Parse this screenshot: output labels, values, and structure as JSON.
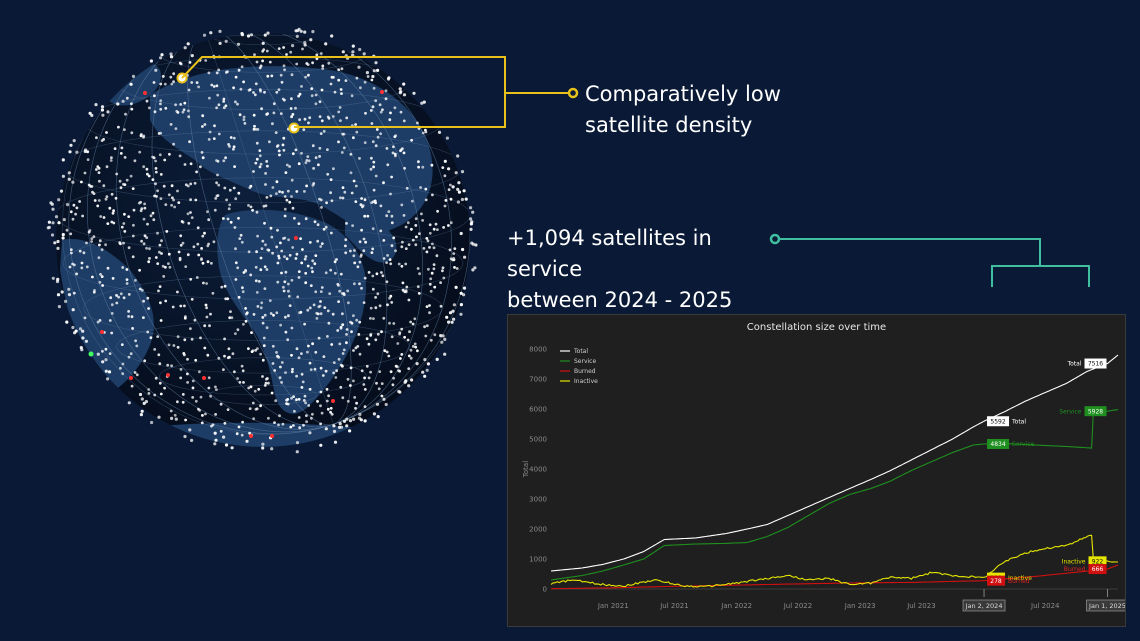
{
  "callouts": {
    "density_line1": "Comparatively low",
    "density_line2": "satellite density",
    "service_line1": "+1,094 satellites in service",
    "service_line2": "between 2024 - 2025"
  },
  "colors": {
    "background": "#0a1a36",
    "density_callout": "#e8c21a",
    "service_callout": "#3fbf9f",
    "total": "#ffffff",
    "service": "#1f8f1f",
    "burned": "#d01010",
    "inactive": "#e6e600"
  },
  "chart_data": {
    "type": "line",
    "title": "Constellation size over time",
    "ylabel": "Total",
    "xlabel": "",
    "ylim": [
      0,
      8000
    ],
    "yticks": [
      0,
      1000,
      2000,
      3000,
      4000,
      5000,
      6000,
      7000,
      8000
    ],
    "ytick_labels": [
      "0",
      "1000",
      "2000",
      "3000",
      "4000",
      "5000",
      "6000",
      "7000",
      "8000"
    ],
    "xlim": [
      "2020-07-01",
      "2025-02-01"
    ],
    "xticks": [
      {
        "date": "2021-01-01",
        "label": "Jan 2021"
      },
      {
        "date": "2021-07-01",
        "label": "Jul 2021"
      },
      {
        "date": "2022-01-01",
        "label": "Jan 2022"
      },
      {
        "date": "2022-07-01",
        "label": "Jul 2022"
      },
      {
        "date": "2023-01-01",
        "label": "Jan 2023"
      },
      {
        "date": "2023-07-01",
        "label": "Jul 2023"
      },
      {
        "date": "2024-07-01",
        "label": "Jul 2024"
      }
    ],
    "highlight_dates": [
      {
        "date": "2024-01-02",
        "label": "Jan 2, 2024"
      },
      {
        "date": "2025-01-01",
        "label": "Jan 1, 2025"
      }
    ],
    "legend_position": "top-left",
    "grid": false,
    "series": [
      {
        "name": "Total",
        "color": "#ffffff",
        "points": [
          [
            "2020-07-01",
            600
          ],
          [
            "2020-10-01",
            700
          ],
          [
            "2020-12-01",
            820
          ],
          [
            "2021-02-01",
            1000
          ],
          [
            "2021-04-01",
            1250
          ],
          [
            "2021-06-01",
            1650
          ],
          [
            "2021-09-01",
            1700
          ],
          [
            "2021-12-01",
            1850
          ],
          [
            "2022-02-01",
            2000
          ],
          [
            "2022-04-01",
            2150
          ],
          [
            "2022-06-01",
            2450
          ],
          [
            "2022-08-01",
            2750
          ],
          [
            "2022-10-01",
            3050
          ],
          [
            "2022-12-01",
            3350
          ],
          [
            "2023-02-01",
            3650
          ],
          [
            "2023-04-01",
            3950
          ],
          [
            "2023-06-01",
            4300
          ],
          [
            "2023-08-01",
            4650
          ],
          [
            "2023-10-01",
            5000
          ],
          [
            "2023-12-01",
            5400
          ],
          [
            "2024-01-02",
            5592
          ],
          [
            "2024-03-01",
            5900
          ],
          [
            "2024-05-01",
            6250
          ],
          [
            "2024-07-01",
            6550
          ],
          [
            "2024-09-01",
            6850
          ],
          [
            "2024-11-01",
            7250
          ],
          [
            "2025-01-01",
            7516
          ],
          [
            "2025-02-01",
            7800
          ]
        ]
      },
      {
        "name": "Service",
        "color": "#1f8f1f",
        "points": [
          [
            "2020-07-01",
            300
          ],
          [
            "2020-10-01",
            450
          ],
          [
            "2020-12-01",
            600
          ],
          [
            "2021-02-01",
            800
          ],
          [
            "2021-04-01",
            1000
          ],
          [
            "2021-06-01",
            1450
          ],
          [
            "2021-09-01",
            1500
          ],
          [
            "2021-12-01",
            1520
          ],
          [
            "2022-02-01",
            1550
          ],
          [
            "2022-04-01",
            1750
          ],
          [
            "2022-06-01",
            2050
          ],
          [
            "2022-08-01",
            2450
          ],
          [
            "2022-10-01",
            2850
          ],
          [
            "2022-12-01",
            3150
          ],
          [
            "2023-02-01",
            3350
          ],
          [
            "2023-04-01",
            3600
          ],
          [
            "2023-06-01",
            3950
          ],
          [
            "2023-08-01",
            4250
          ],
          [
            "2023-10-01",
            4550
          ],
          [
            "2023-12-01",
            4800
          ],
          [
            "2024-01-02",
            4834
          ],
          [
            "2024-03-01",
            4850
          ],
          [
            "2024-06-01",
            4800
          ],
          [
            "2024-09-01",
            4750
          ],
          [
            "2024-11-15",
            4700
          ],
          [
            "2024-11-20",
            5900
          ],
          [
            "2025-01-01",
            5928
          ],
          [
            "2025-02-01",
            5980
          ]
        ]
      },
      {
        "name": "Burned",
        "color": "#d01010",
        "points": [
          [
            "2020-07-01",
            10
          ],
          [
            "2021-01-01",
            40
          ],
          [
            "2021-07-01",
            90
          ],
          [
            "2022-01-01",
            130
          ],
          [
            "2022-07-01",
            170
          ],
          [
            "2022-12-01",
            200
          ],
          [
            "2023-06-01",
            220
          ],
          [
            "2024-01-02",
            278
          ],
          [
            "2024-06-01",
            420
          ],
          [
            "2024-10-01",
            560
          ],
          [
            "2025-01-01",
            666
          ],
          [
            "2025-02-01",
            800
          ]
        ]
      },
      {
        "name": "Inactive",
        "color": "#e6e600",
        "points": [
          [
            "2020-07-01",
            180
          ],
          [
            "2020-09-01",
            300
          ],
          [
            "2020-12-01",
            150
          ],
          [
            "2021-02-01",
            100
          ],
          [
            "2021-05-01",
            300
          ],
          [
            "2021-08-01",
            100
          ],
          [
            "2021-10-01",
            80
          ],
          [
            "2022-01-01",
            200
          ],
          [
            "2022-04-01",
            350
          ],
          [
            "2022-06-01",
            450
          ],
          [
            "2022-08-01",
            300
          ],
          [
            "2022-10-01",
            350
          ],
          [
            "2022-12-01",
            150
          ],
          [
            "2023-02-01",
            200
          ],
          [
            "2023-04-01",
            400
          ],
          [
            "2023-06-01",
            350
          ],
          [
            "2023-08-01",
            550
          ],
          [
            "2023-10-01",
            450
          ],
          [
            "2023-12-01",
            400
          ],
          [
            "2024-01-02",
            380
          ],
          [
            "2024-03-01",
            900
          ],
          [
            "2024-05-01",
            1200
          ],
          [
            "2024-07-01",
            1350
          ],
          [
            "2024-09-01",
            1450
          ],
          [
            "2024-11-15",
            1800
          ],
          [
            "2024-11-20",
            1000
          ],
          [
            "2025-01-01",
            922
          ],
          [
            "2025-02-01",
            900
          ]
        ]
      }
    ],
    "annotations": [
      {
        "series": "Total",
        "date": "2024-01-02",
        "value": 5592,
        "value_label": "5592",
        "name": "Total"
      },
      {
        "series": "Service",
        "date": "2024-01-02",
        "value": 4834,
        "value_label": "4834",
        "name": "Service"
      },
      {
        "series": "Inactive",
        "date": "2024-01-02",
        "value": 380,
        "value_label": "380",
        "name": "Inactive"
      },
      {
        "series": "Burned",
        "date": "2024-01-02",
        "value": 278,
        "value_label": "278",
        "name": "Burned"
      },
      {
        "series": "Total",
        "date": "2025-01-01",
        "value": 7516,
        "value_label": "7516",
        "name": "Total"
      },
      {
        "series": "Service",
        "date": "2025-01-01",
        "value": 5928,
        "value_label": "5928",
        "name": "Service"
      },
      {
        "series": "Inactive",
        "date": "2025-01-01",
        "value": 922,
        "value_label": "922",
        "name": "Inactive"
      },
      {
        "series": "Burned",
        "date": "2025-01-01",
        "value": 666,
        "value_label": "666",
        "name": "Burned"
      }
    ]
  }
}
